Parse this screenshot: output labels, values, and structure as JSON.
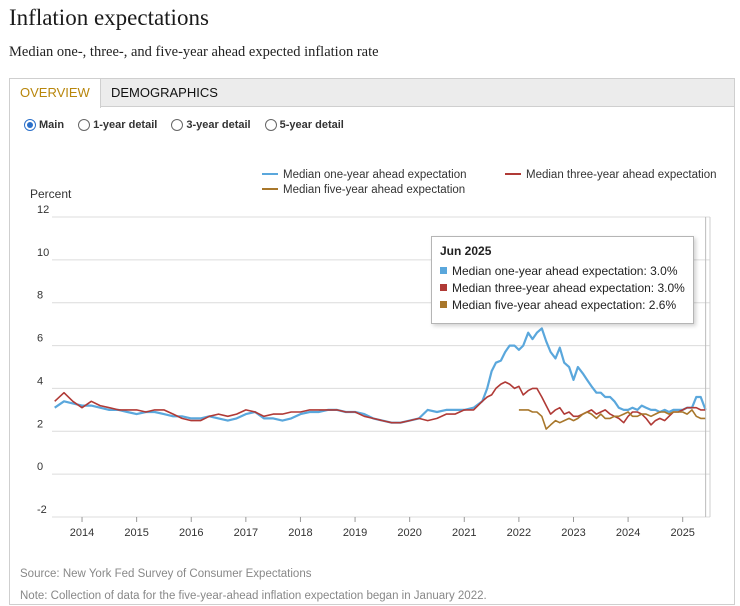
{
  "header": {
    "title": "Inflation expectations",
    "subtitle": "Median one-, three-, and five-year ahead expected inflation rate"
  },
  "tabs": [
    {
      "label": "OVERVIEW",
      "active": true
    },
    {
      "label": "DEMOGRAPHICS",
      "active": false
    }
  ],
  "radio_options": [
    {
      "label": "Main",
      "checked": true
    },
    {
      "label": "1-year detail",
      "checked": false
    },
    {
      "label": "3-year detail",
      "checked": false
    },
    {
      "label": "5-year detail",
      "checked": false
    }
  ],
  "footer": {
    "source": "Source: New York Fed Survey of Consumer Expectations",
    "note": "Note: Collection of data for the five-year-ahead inflation expectation began in January 2022."
  },
  "tooltip": {
    "date": "Jun 2025",
    "rows": [
      {
        "text": "Median one-year ahead expectation: 3.0%",
        "color": "#5aa7dc"
      },
      {
        "text": "Median three-year ahead expectation: 3.0%",
        "color": "#b03a36"
      },
      {
        "text": "Median five-year ahead expectation: 2.6%",
        "color": "#a8772b"
      }
    ]
  },
  "chart_data": {
    "type": "line",
    "title": "",
    "ylabel": "Percent",
    "xlabel": "",
    "ylim": [
      -2,
      12
    ],
    "yticks": [
      -2,
      0,
      2,
      4,
      6,
      8,
      10,
      12
    ],
    "xlim": [
      2013.45,
      2025.5
    ],
    "xticks": [
      "2014",
      "2015",
      "2016",
      "2017",
      "2018",
      "2019",
      "2020",
      "2021",
      "2022",
      "2023",
      "2024",
      "2025"
    ],
    "legend_position": "top",
    "grid": true,
    "series": [
      {
        "name": "Median one-year ahead expectation",
        "color": "#5aa7dc",
        "x": [
          2013.5,
          2013.67,
          2013.83,
          2014.0,
          2014.17,
          2014.33,
          2014.5,
          2014.67,
          2014.83,
          2015.0,
          2015.17,
          2015.33,
          2015.5,
          2015.67,
          2015.83,
          2016.0,
          2016.17,
          2016.33,
          2016.5,
          2016.67,
          2016.83,
          2017.0,
          2017.17,
          2017.33,
          2017.5,
          2017.67,
          2017.83,
          2018.0,
          2018.17,
          2018.33,
          2018.5,
          2018.67,
          2018.83,
          2019.0,
          2019.17,
          2019.33,
          2019.5,
          2019.67,
          2019.83,
          2020.0,
          2020.17,
          2020.33,
          2020.5,
          2020.67,
          2020.83,
          2021.0,
          2021.17,
          2021.33,
          2021.42,
          2021.5,
          2021.58,
          2021.67,
          2021.75,
          2021.83,
          2021.92,
          2022.0,
          2022.08,
          2022.17,
          2022.25,
          2022.33,
          2022.42,
          2022.5,
          2022.58,
          2022.67,
          2022.75,
          2022.83,
          2022.92,
          2023.0,
          2023.08,
          2023.17,
          2023.25,
          2023.33,
          2023.42,
          2023.5,
          2023.58,
          2023.67,
          2023.75,
          2023.83,
          2023.92,
          2024.0,
          2024.08,
          2024.17,
          2024.25,
          2024.33,
          2024.42,
          2024.5,
          2024.58,
          2024.67,
          2024.75,
          2024.83,
          2024.92,
          2025.0,
          2025.08,
          2025.17,
          2025.25,
          2025.33,
          2025.42
        ],
        "values": [
          3.1,
          3.4,
          3.3,
          3.2,
          3.2,
          3.1,
          3.0,
          3.0,
          2.9,
          2.8,
          2.9,
          2.9,
          2.8,
          2.7,
          2.7,
          2.6,
          2.6,
          2.7,
          2.6,
          2.5,
          2.6,
          2.8,
          2.9,
          2.6,
          2.6,
          2.5,
          2.6,
          2.8,
          2.9,
          2.9,
          3.0,
          3.0,
          2.9,
          2.9,
          2.8,
          2.6,
          2.5,
          2.4,
          2.4,
          2.5,
          2.6,
          3.0,
          2.9,
          3.0,
          3.0,
          3.0,
          3.1,
          3.4,
          4.0,
          4.8,
          5.2,
          5.3,
          5.7,
          6.0,
          6.0,
          5.8,
          6.0,
          6.6,
          6.3,
          6.6,
          6.8,
          6.2,
          5.7,
          5.4,
          5.9,
          5.2,
          5.0,
          4.4,
          5.0,
          4.7,
          4.4,
          4.1,
          3.8,
          3.8,
          3.6,
          3.6,
          3.4,
          3.1,
          3.0,
          3.0,
          3.1,
          3.0,
          3.2,
          3.1,
          3.0,
          3.0,
          2.9,
          3.0,
          2.9,
          3.0,
          3.0,
          3.0,
          3.1,
          3.1,
          3.6,
          3.6,
          3.0
        ]
      },
      {
        "name": "Median three-year ahead expectation",
        "color": "#b03a36",
        "x": [
          2013.5,
          2013.67,
          2013.83,
          2014.0,
          2014.17,
          2014.33,
          2014.5,
          2014.67,
          2014.83,
          2015.0,
          2015.17,
          2015.33,
          2015.5,
          2015.67,
          2015.83,
          2016.0,
          2016.17,
          2016.33,
          2016.5,
          2016.67,
          2016.83,
          2017.0,
          2017.17,
          2017.33,
          2017.5,
          2017.67,
          2017.83,
          2018.0,
          2018.17,
          2018.33,
          2018.5,
          2018.67,
          2018.83,
          2019.0,
          2019.17,
          2019.33,
          2019.5,
          2019.67,
          2019.83,
          2020.0,
          2020.17,
          2020.33,
          2020.5,
          2020.67,
          2020.83,
          2021.0,
          2021.17,
          2021.33,
          2021.42,
          2021.5,
          2021.58,
          2021.67,
          2021.75,
          2021.83,
          2021.92,
          2022.0,
          2022.08,
          2022.17,
          2022.25,
          2022.33,
          2022.42,
          2022.5,
          2022.58,
          2022.67,
          2022.75,
          2022.83,
          2022.92,
          2023.0,
          2023.08,
          2023.17,
          2023.25,
          2023.33,
          2023.42,
          2023.5,
          2023.58,
          2023.67,
          2023.75,
          2023.83,
          2023.92,
          2024.0,
          2024.08,
          2024.17,
          2024.25,
          2024.33,
          2024.42,
          2024.5,
          2024.58,
          2024.67,
          2024.75,
          2024.83,
          2024.92,
          2025.0,
          2025.08,
          2025.17,
          2025.25,
          2025.33,
          2025.42
        ],
        "values": [
          3.4,
          3.8,
          3.4,
          3.1,
          3.4,
          3.2,
          3.1,
          3.0,
          3.0,
          3.0,
          2.9,
          3.0,
          3.0,
          2.8,
          2.6,
          2.5,
          2.5,
          2.7,
          2.8,
          2.7,
          2.8,
          3.0,
          2.9,
          2.7,
          2.8,
          2.8,
          2.9,
          2.9,
          3.0,
          3.0,
          3.0,
          3.0,
          2.9,
          2.9,
          2.7,
          2.6,
          2.5,
          2.4,
          2.4,
          2.5,
          2.6,
          2.5,
          2.6,
          2.8,
          2.8,
          3.0,
          3.0,
          3.4,
          3.6,
          3.7,
          4.0,
          4.2,
          4.3,
          4.2,
          4.0,
          4.1,
          3.7,
          3.9,
          4.0,
          4.0,
          3.6,
          3.2,
          2.8,
          3.0,
          3.1,
          2.8,
          2.9,
          2.7,
          2.7,
          2.8,
          2.9,
          3.0,
          2.8,
          2.9,
          3.0,
          2.8,
          2.7,
          2.6,
          2.4,
          2.7,
          2.9,
          2.9,
          2.8,
          2.6,
          2.3,
          2.5,
          2.6,
          2.5,
          2.7,
          2.9,
          2.9,
          3.0,
          3.1,
          3.1,
          3.1,
          3.0,
          3.0
        ]
      },
      {
        "name": "Median five-year ahead expectation",
        "color": "#a8772b",
        "x": [
          2022.0,
          2022.08,
          2022.17,
          2022.25,
          2022.33,
          2022.42,
          2022.5,
          2022.58,
          2022.67,
          2022.75,
          2022.83,
          2022.92,
          2023.0,
          2023.08,
          2023.17,
          2023.25,
          2023.33,
          2023.42,
          2023.5,
          2023.58,
          2023.67,
          2023.75,
          2023.83,
          2023.92,
          2024.0,
          2024.08,
          2024.17,
          2024.25,
          2024.33,
          2024.42,
          2024.5,
          2024.58,
          2024.67,
          2024.75,
          2024.83,
          2024.92,
          2025.0,
          2025.08,
          2025.17,
          2025.25,
          2025.33,
          2025.42
        ],
        "values": [
          3.0,
          3.0,
          3.0,
          2.9,
          2.9,
          2.7,
          2.1,
          2.3,
          2.5,
          2.4,
          2.5,
          2.6,
          2.5,
          2.6,
          2.8,
          2.9,
          2.8,
          2.6,
          2.8,
          2.6,
          2.6,
          2.7,
          2.7,
          2.8,
          2.9,
          2.7,
          2.7,
          2.8,
          2.8,
          2.7,
          2.8,
          2.9,
          2.9,
          2.8,
          2.9,
          2.9,
          2.9,
          2.8,
          3.0,
          2.7,
          2.6,
          2.6
        ]
      }
    ]
  }
}
